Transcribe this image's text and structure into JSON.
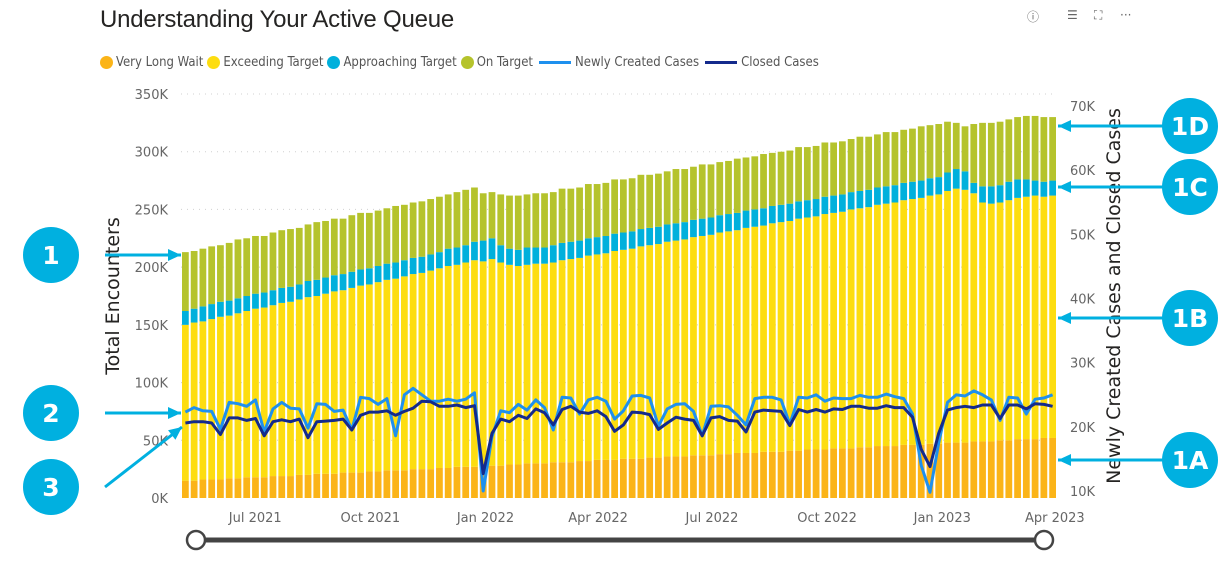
{
  "header": {
    "title": "Understanding Your Active Queue",
    "icons": [
      "help-icon",
      "filter-icon",
      "focus-mode-icon",
      "more-options-icon"
    ]
  },
  "annotations": {
    "left": [
      "1",
      "2",
      "3"
    ],
    "right": [
      "1D",
      "1C",
      "1B",
      "1A"
    ],
    "color": "#00b0e0"
  },
  "slider": {
    "track_color": "#444444"
  },
  "chart_data": {
    "type": "bar",
    "stacked": true,
    "title": "Understanding Your Active Queue",
    "ylabel": "Total Encounters",
    "y2label": "Newly Created Cases and Closed Cases",
    "ylim": [
      0,
      350000
    ],
    "y2lim": [
      10000,
      70000
    ],
    "y_ticks": [
      "0K",
      "50K",
      "100K",
      "150K",
      "200K",
      "250K",
      "300K",
      "350K"
    ],
    "y2_ticks": [
      "10K",
      "20K",
      "30K",
      "40K",
      "50K",
      "60K",
      "70K"
    ],
    "x_ticks": [
      "Jul 2021",
      "Oct 2021",
      "Jan 2022",
      "Apr 2022",
      "Jul 2022",
      "Oct 2022",
      "Jan 2023",
      "Apr 2023"
    ],
    "grid": true,
    "legend_position": "top-left",
    "unit_note": "bar values and line values in thousands",
    "x": [
      "2021-05-09",
      "2021-05-16",
      "2021-05-23",
      "2021-05-30",
      "2021-06-06",
      "2021-06-13",
      "2021-06-20",
      "2021-06-27",
      "2021-07-04",
      "2021-07-11",
      "2021-07-18",
      "2021-07-25",
      "2021-08-01",
      "2021-08-08",
      "2021-08-15",
      "2021-08-22",
      "2021-08-29",
      "2021-09-05",
      "2021-09-12",
      "2021-09-19",
      "2021-09-26",
      "2021-10-03",
      "2021-10-10",
      "2021-10-17",
      "2021-10-24",
      "2021-10-31",
      "2021-11-07",
      "2021-11-14",
      "2021-11-21",
      "2021-11-28",
      "2021-12-05",
      "2021-12-12",
      "2021-12-19",
      "2021-12-26",
      "2022-01-02",
      "2022-01-09",
      "2022-01-16",
      "2022-01-23",
      "2022-01-30",
      "2022-02-06",
      "2022-02-13",
      "2022-02-20",
      "2022-02-27",
      "2022-03-06",
      "2022-03-13",
      "2022-03-20",
      "2022-03-27",
      "2022-04-03",
      "2022-04-10",
      "2022-04-17",
      "2022-04-24",
      "2022-05-01",
      "2022-05-08",
      "2022-05-15",
      "2022-05-22",
      "2022-05-29",
      "2022-06-05",
      "2022-06-12",
      "2022-06-19",
      "2022-06-26",
      "2022-07-03",
      "2022-07-10",
      "2022-07-17",
      "2022-07-24",
      "2022-07-31",
      "2022-08-07",
      "2022-08-14",
      "2022-08-21",
      "2022-08-28",
      "2022-09-04",
      "2022-09-11",
      "2022-09-18",
      "2022-09-25",
      "2022-10-02",
      "2022-10-09",
      "2022-10-16",
      "2022-10-23",
      "2022-10-30",
      "2022-11-06",
      "2022-11-13",
      "2022-11-20",
      "2022-11-27",
      "2022-12-04",
      "2022-12-11",
      "2022-12-18",
      "2022-12-25",
      "2023-01-01",
      "2023-01-08",
      "2023-01-15",
      "2023-01-22",
      "2023-01-29",
      "2023-02-05",
      "2023-02-12",
      "2023-02-19",
      "2023-02-26",
      "2023-03-05",
      "2023-03-12",
      "2023-03-19",
      "2023-03-26",
      "2023-04-02"
    ],
    "series": [
      {
        "name": "Very Long Wait",
        "kind": "bar",
        "axis": "left",
        "color": "#fbb418",
        "values": [
          15,
          15,
          16,
          16,
          16,
          17,
          17,
          18,
          18,
          18,
          19,
          19,
          19,
          20,
          20,
          21,
          21,
          21,
          22,
          22,
          22,
          23,
          23,
          24,
          24,
          24,
          25,
          25,
          25,
          26,
          26,
          27,
          27,
          27,
          28,
          28,
          28,
          29,
          29,
          30,
          30,
          30,
          31,
          31,
          31,
          32,
          32,
          33,
          33,
          33,
          34,
          34,
          34,
          35,
          35,
          36,
          36,
          36,
          37,
          37,
          37,
          38,
          38,
          39,
          39,
          39,
          40,
          40,
          40,
          41,
          41,
          42,
          42,
          42,
          43,
          43,
          43,
          44,
          44,
          45,
          45,
          45,
          46,
          46,
          46,
          47,
          47,
          48,
          48,
          48,
          49,
          49,
          49,
          50,
          50,
          51,
          51,
          51,
          52,
          52
        ]
      },
      {
        "name": "Exceeding Target",
        "kind": "bar",
        "axis": "left",
        "color": "#fddd10",
        "values": [
          135,
          137,
          137,
          139,
          141,
          141,
          143,
          144,
          146,
          147,
          148,
          150,
          151,
          152,
          154,
          154,
          156,
          158,
          158,
          160,
          162,
          162,
          164,
          165,
          166,
          168,
          169,
          170,
          172,
          173,
          175,
          175,
          177,
          179,
          177,
          179,
          176,
          173,
          172,
          172,
          173,
          173,
          173,
          175,
          176,
          176,
          178,
          178,
          179,
          181,
          181,
          182,
          184,
          184,
          185,
          186,
          187,
          188,
          189,
          190,
          191,
          192,
          193,
          193,
          195,
          196,
          196,
          198,
          199,
          199,
          201,
          201,
          202,
          204,
          204,
          205,
          207,
          207,
          208,
          209,
          210,
          211,
          212,
          213,
          214,
          215,
          216,
          218,
          220,
          219,
          215,
          207,
          206,
          206,
          208,
          209,
          210,
          211,
          209,
          210
        ]
      },
      {
        "name": "Approaching Target",
        "kind": "bar",
        "axis": "left",
        "color": "#00b0dc",
        "values": [
          12,
          12,
          13,
          13,
          13,
          13,
          13,
          13,
          13,
          13,
          13,
          13,
          13,
          13,
          14,
          14,
          14,
          14,
          14,
          14,
          14,
          14,
          14,
          14,
          14,
          14,
          14,
          14,
          14,
          14,
          15,
          15,
          15,
          16,
          18,
          18,
          15,
          14,
          14,
          15,
          14,
          14,
          15,
          15,
          15,
          15,
          15,
          15,
          15,
          15,
          15,
          15,
          15,
          15,
          15,
          15,
          15,
          15,
          15,
          15,
          15,
          15,
          15,
          15,
          15,
          15,
          15,
          15,
          15,
          15,
          15,
          15,
          15,
          15,
          15,
          15,
          15,
          15,
          15,
          15,
          15,
          15,
          15,
          15,
          15,
          15,
          15,
          16,
          17,
          16,
          9,
          14,
          15,
          15,
          16,
          16,
          15,
          13,
          13,
          13
        ]
      },
      {
        "name": "On Target",
        "kind": "bar",
        "axis": "left",
        "color": "#b5c32c",
        "values": [
          51,
          50,
          50,
          50,
          49,
          50,
          51,
          50,
          50,
          49,
          50,
          50,
          50,
          49,
          49,
          50,
          49,
          49,
          48,
          49,
          49,
          48,
          48,
          48,
          49,
          48,
          48,
          48,
          48,
          48,
          47,
          48,
          48,
          47,
          41,
          40,
          44,
          46,
          47,
          46,
          47,
          47,
          46,
          47,
          46,
          46,
          47,
          46,
          46,
          47,
          46,
          46,
          47,
          46,
          46,
          46,
          47,
          46,
          46,
          47,
          46,
          46,
          46,
          47,
          46,
          46,
          47,
          46,
          46,
          46,
          47,
          46,
          46,
          47,
          46,
          46,
          46,
          47,
          46,
          46,
          47,
          46,
          46,
          46,
          47,
          46,
          46,
          44,
          40,
          39,
          51,
          55,
          55,
          55,
          54,
          54,
          55,
          56,
          56,
          55
        ]
      },
      {
        "name": "Newly Created Cases",
        "kind": "line",
        "axis": "right",
        "color": "#1e90ee",
        "values": [
          22.3,
          23,
          22.5,
          22.4,
          19.6,
          23.8,
          23.6,
          23.2,
          24.2,
          19.2,
          22.8,
          23.8,
          22.9,
          22.8,
          19.8,
          23.6,
          23.5,
          22.4,
          22.6,
          19.5,
          24.6,
          24.4,
          23.5,
          24.4,
          18.6,
          25,
          26,
          25,
          24,
          24,
          24.3,
          24,
          24.3,
          25.3,
          10,
          18.5,
          22.5,
          22.2,
          23.5,
          22.6,
          24.2,
          23.0,
          19.5,
          24.6,
          24.5,
          22.0,
          24.2,
          24.6,
          24.0,
          21.2,
          22.5,
          24.8,
          24.9,
          24.5,
          20.1,
          22.8,
          23.5,
          23.6,
          22.4,
          18.6,
          23.2,
          23.3,
          23.1,
          21.8,
          20.3,
          24.4,
          24.6,
          24.6,
          24.2,
          20.4,
          24.6,
          24.5,
          25.0,
          24.0,
          24.5,
          24.4,
          24.4,
          24.9,
          24.6,
          24.6,
          25.1,
          24.7,
          24.4,
          22.0,
          14.0,
          9.8,
          17.5,
          23.8,
          25.0,
          24.8,
          25.6,
          25.0,
          24.2,
          21.0,
          24.6,
          24.5,
          22.0,
          24.3,
          24.5,
          25.0
        ]
      },
      {
        "name": "Closed Cases",
        "kind": "line",
        "axis": "right",
        "color": "#142a8c",
        "values": [
          20.6,
          20.8,
          20.8,
          20.6,
          18.8,
          21.4,
          21.4,
          21,
          21.3,
          18.6,
          20.8,
          21.1,
          20.8,
          21.2,
          18.3,
          20.8,
          20.9,
          21,
          21.2,
          19.5,
          21.8,
          22.3,
          22.3,
          22.5,
          21.8,
          22.4,
          22.9,
          24,
          23.9,
          23.2,
          23.2,
          23.4,
          23,
          23.3,
          12.7,
          19.0,
          21.2,
          20.8,
          21.8,
          21.3,
          22.8,
          22.2,
          20.3,
          22.7,
          23.2,
          22.3,
          22.1,
          22.5,
          21.6,
          19.3,
          20.3,
          22.3,
          22.2,
          21.9,
          19.6,
          20.6,
          21.5,
          21.2,
          21.0,
          18.6,
          21.4,
          21.6,
          21.0,
          20.9,
          19.2,
          22.3,
          22.6,
          22.5,
          22.4,
          20.2,
          22.7,
          22.3,
          22.7,
          22.3,
          22.8,
          22.7,
          23.2,
          23.2,
          22.9,
          22.9,
          23.3,
          23.0,
          23.0,
          21.5,
          16.5,
          13.8,
          19.0,
          22.6,
          23.0,
          23.2,
          23.0,
          23.4,
          23.4,
          21.3,
          23.4,
          23.4,
          22.8,
          23.6,
          23.5,
          23.2
        ]
      }
    ]
  }
}
